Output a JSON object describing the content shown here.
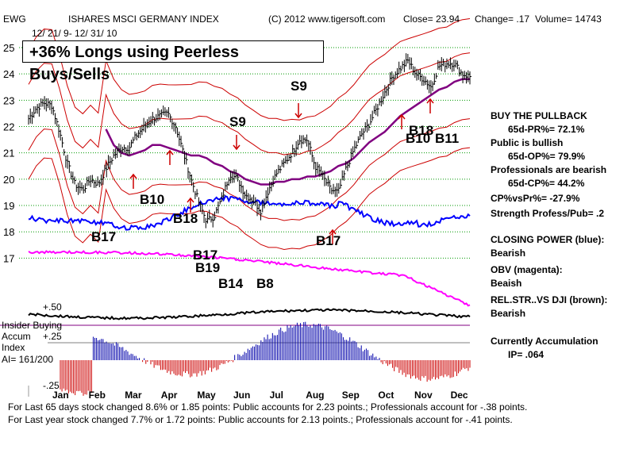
{
  "header": {
    "ticker": "EWG",
    "name": "ISHARES MSCI GERMANY INDEX",
    "copyright": "(C) 2012 www.tigersoft.com",
    "close": "Close=  23.94",
    "change": "Change= .17",
    "volume": "Volume= 14743",
    "date_range": "12/ 21/ 9- 12/ 31/ 10"
  },
  "banner": "+36% Longs using Peerless Buys/Sells",
  "left_labels": {
    "insider": "Insider Buying",
    "accum": "Accum",
    "index": "Index",
    "ai": "AI= 161/200",
    "minus25": "-.25",
    "plus50": "+.50",
    "plus25": "+.25"
  },
  "side_panel": [
    {
      "text": "BUY THE PULLBACK",
      "indent": false
    },
    {
      "text": "65d-PR%= 72.1%",
      "indent": true
    },
    {
      "text": "Public is bullish",
      "indent": false
    },
    {
      "text": "65d-OP%= 79.9%",
      "indent": true
    },
    {
      "text": "Professionals are bearish",
      "indent": false
    },
    {
      "text": "65d-CP%= 44.2%",
      "indent": true
    },
    {
      "text": "CP%vsPr%= -27.9%",
      "indent": false
    },
    {
      "text": "Strength Profess/Pub= .2",
      "indent": false
    },
    {
      "text": "CLOSING POWER (blue):",
      "indent": false
    },
    {
      "text": "Bearish",
      "indent": false
    },
    {
      "text": "OBV (magenta):",
      "indent": false
    },
    {
      "text": "Beaish",
      "indent": false
    },
    {
      "text": "REL.STR..VS DJI (brown):",
      "indent": false
    },
    {
      "text": "Bearish",
      "indent": false
    },
    {
      "text": "Currently Accumulation",
      "indent": false
    },
    {
      "text": "IP= .064",
      "indent": true
    }
  ],
  "footer": [
    "For Last 65 days stock changed  8.6% or  1.85 points:  Public accounts for  2.23 points.;  Professionals account for -.38 points.",
    "For Last year stock changed  7.7% or  1.72 points:  Public accounts for  2.13 points.;  Professionals account for -.41 points."
  ],
  "colors": {
    "price": "#000000",
    "bands": "#cc0000",
    "moving_average": "#800080",
    "closing_power": "#0000ff",
    "obv": "#ff00ff",
    "rel_strength": "#8b0000",
    "accum_pos": "#0000aa",
    "accum_neg": "#cc0000",
    "grid": "#009900"
  },
  "chart_data": {
    "type": "line",
    "title": "ISHARES MSCI GERMANY INDEX",
    "x_ticks": [
      "Jan",
      "Feb",
      "Mar",
      "Apr",
      "May",
      "Jun",
      "Jul",
      "Aug",
      "Sep",
      "Oct",
      "Nov",
      "Dec"
    ],
    "y_ticks": [
      17,
      18,
      19,
      20,
      21,
      22,
      23,
      24,
      25
    ],
    "ylim": [
      16.5,
      25.3
    ],
    "grid": true,
    "series": [
      {
        "name": "EWG close",
        "values": [
          22.3,
          22.7,
          22.9,
          22.8,
          21.8,
          20.6,
          19.8,
          19.6,
          20.0,
          19.8,
          20.4,
          20.9,
          21.2,
          21.2,
          21.7,
          22.0,
          22.3,
          22.4,
          22.5,
          22.0,
          21.0,
          20.0,
          19.1,
          18.4,
          18.6,
          19.3,
          20.2,
          20.0,
          19.4,
          19.2,
          18.8,
          19.6,
          20.2,
          20.6,
          21.0,
          21.5,
          21.5,
          20.5,
          20.1,
          19.6,
          19.5,
          20.4,
          21.1,
          21.7,
          22.1,
          22.7,
          23.3,
          23.9,
          24.2,
          24.5,
          24.0,
          23.8,
          23.5,
          24.3,
          24.4,
          24.4,
          24.0,
          23.9
        ]
      },
      {
        "name": "50-day MA",
        "values": [
          null,
          null,
          null,
          null,
          null,
          null,
          null,
          null,
          null,
          null,
          21.9,
          21.3,
          21.0,
          20.9,
          21.0,
          21.1,
          21.3,
          21.3,
          21.2,
          21.1,
          21.0,
          20.9,
          20.9,
          20.8,
          20.6,
          20.5,
          20.3,
          20.2,
          20.0,
          19.9,
          19.8,
          19.8,
          19.9,
          19.9,
          20.0,
          20.0,
          20.1,
          20.1,
          20.2,
          20.3,
          20.5,
          20.6,
          20.8,
          21.1,
          21.4,
          21.6,
          21.8,
          22.1,
          22.4,
          22.6,
          22.8,
          23.0,
          23.2,
          23.4,
          23.5,
          23.7,
          23.8,
          23.8
        ]
      }
    ],
    "signals": [
      {
        "label": "B17",
        "type": "buy"
      },
      {
        "label": "B10",
        "type": "buy"
      },
      {
        "label": "B18",
        "type": "buy"
      },
      {
        "label": "B17",
        "type": "buy"
      },
      {
        "label": "B19",
        "type": "buy"
      },
      {
        "label": "B14",
        "type": "buy"
      },
      {
        "label": "B8",
        "type": "buy"
      },
      {
        "label": "S9",
        "type": "sell"
      },
      {
        "label": "S9",
        "type": "sell"
      },
      {
        "label": "B17",
        "type": "buy"
      },
      {
        "label": "B18",
        "type": "buy"
      },
      {
        "label": "B10",
        "type": "buy"
      },
      {
        "label": "B11",
        "type": "buy"
      }
    ]
  }
}
